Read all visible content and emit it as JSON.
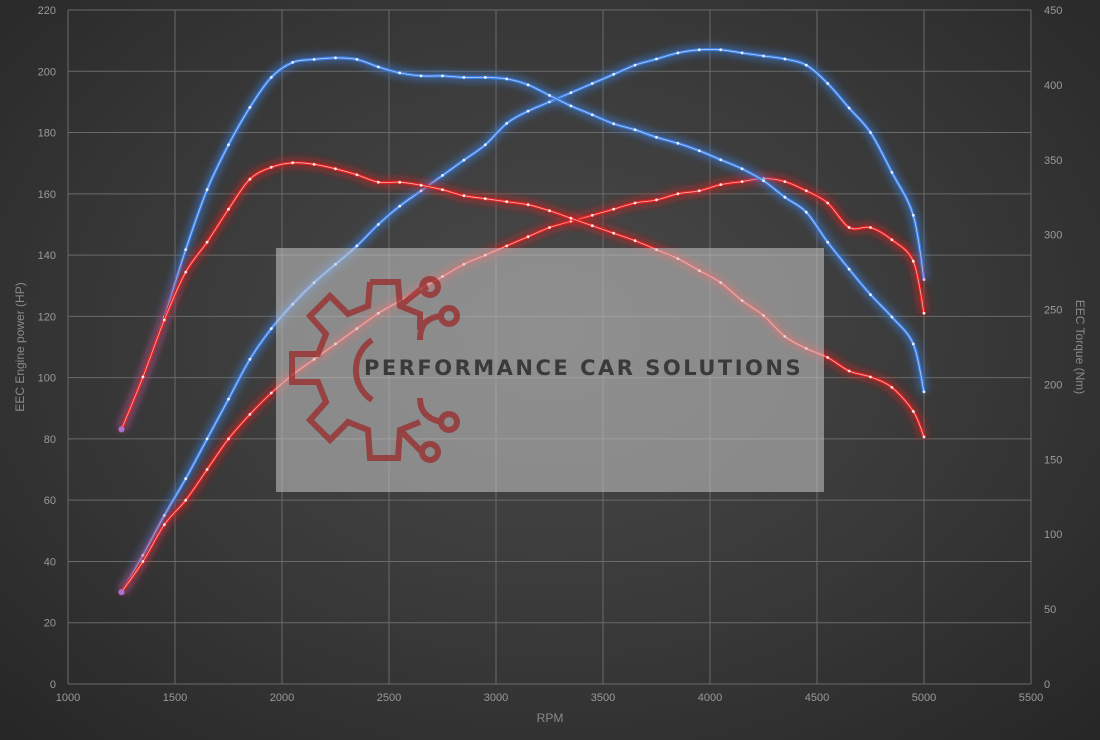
{
  "chart_data": {
    "type": "line",
    "xlabel": "RPM",
    "ylabel_left": "EEC Engine power (HP)",
    "ylabel_right": "EEC Torque (Nm)",
    "xlim": [
      1000,
      5500
    ],
    "x_ticks": [
      1000,
      1500,
      2000,
      2500,
      3000,
      3500,
      4000,
      4500,
      5000,
      5500
    ],
    "ylim_left": [
      0,
      220
    ],
    "y_ticks_left": [
      0,
      20,
      40,
      60,
      80,
      100,
      120,
      140,
      160,
      180,
      200,
      220
    ],
    "ylim_right": [
      0,
      450
    ],
    "y_ticks_right": [
      0,
      50,
      100,
      150,
      200,
      250,
      300,
      350,
      400,
      450
    ],
    "grid": true,
    "series": [
      {
        "axis": "left",
        "color": "#3d7fe0",
        "x": [
          1250,
          1350,
          1450,
          1550,
          1650,
          1750,
          1850,
          1950,
          2050,
          2150,
          2250,
          2350,
          2450,
          2550,
          2650,
          2750,
          2850,
          2950,
          3050,
          3150,
          3250,
          3350,
          3450,
          3550,
          3650,
          3750,
          3850,
          3950,
          4050,
          4150,
          4250,
          4350,
          4450,
          4550,
          4650,
          4750,
          4850,
          4950,
          5000
        ],
        "y": [
          30,
          42,
          55,
          67,
          80,
          93,
          106,
          116,
          124,
          131,
          137,
          143,
          150,
          156,
          161,
          166,
          171,
          176,
          183,
          187,
          190,
          193,
          196,
          199,
          202,
          204,
          206,
          207,
          207,
          206,
          205,
          204,
          202,
          196,
          188,
          180,
          167,
          153,
          132
        ]
      },
      {
        "axis": "left",
        "color": "#dd2222",
        "x": [
          1250,
          1350,
          1450,
          1550,
          1650,
          1750,
          1850,
          1950,
          2050,
          2150,
          2250,
          2350,
          2450,
          2550,
          2650,
          2750,
          2850,
          2950,
          3050,
          3150,
          3250,
          3350,
          3450,
          3550,
          3650,
          3750,
          3850,
          3950,
          4050,
          4150,
          4250,
          4350,
          4450,
          4550,
          4650,
          4750,
          4850,
          4950,
          5000
        ],
        "y": [
          30,
          40,
          52,
          60,
          70,
          80,
          88,
          95,
          101,
          106,
          111,
          116,
          121,
          125,
          129,
          133,
          137,
          140,
          143,
          146,
          149,
          151,
          153,
          155,
          157,
          158,
          160,
          161,
          163,
          164,
          165,
          164,
          161,
          157,
          149,
          149,
          145,
          138,
          121
        ]
      },
      {
        "axis": "right",
        "color": "#3d7fe0",
        "x": [
          1250,
          1350,
          1450,
          1550,
          1650,
          1750,
          1850,
          1950,
          2050,
          2150,
          2250,
          2350,
          2450,
          2550,
          2650,
          2750,
          2850,
          2950,
          3050,
          3150,
          3250,
          3350,
          3450,
          3550,
          3650,
          3750,
          3850,
          3950,
          4050,
          4150,
          4250,
          4350,
          4450,
          4550,
          4650,
          4750,
          4850,
          4950,
          5000
        ],
        "y": [
          170,
          205,
          245,
          290,
          330,
          360,
          385,
          405,
          415,
          417,
          418,
          417,
          412,
          408,
          406,
          406,
          405,
          405,
          404,
          400,
          393,
          386,
          380,
          374,
          370,
          365,
          361,
          356,
          350,
          344,
          336,
          325,
          315,
          295,
          277,
          260,
          245,
          227,
          195
        ]
      },
      {
        "axis": "right",
        "color": "#dd2222",
        "x": [
          1250,
          1350,
          1450,
          1550,
          1650,
          1750,
          1850,
          1950,
          2050,
          2150,
          2250,
          2350,
          2450,
          2550,
          2650,
          2750,
          2850,
          2950,
          3050,
          3150,
          3250,
          3350,
          3450,
          3550,
          3650,
          3750,
          3850,
          3950,
          4050,
          4150,
          4250,
          4350,
          4450,
          4550,
          4650,
          4750,
          4850,
          4950,
          5000
        ],
        "y": [
          170,
          205,
          243,
          275,
          295,
          317,
          337,
          345,
          348,
          347,
          344,
          340,
          335,
          335,
          333,
          330,
          326,
          324,
          322,
          320,
          316,
          311,
          306,
          301,
          296,
          290,
          284,
          276,
          268,
          256,
          246,
          232,
          224,
          218,
          209,
          205,
          198,
          182,
          165
        ]
      }
    ]
  },
  "watermark": {
    "text": "PERFORMANCE CAR SOLUTIONS",
    "icon": "gear-circuit-icon"
  }
}
